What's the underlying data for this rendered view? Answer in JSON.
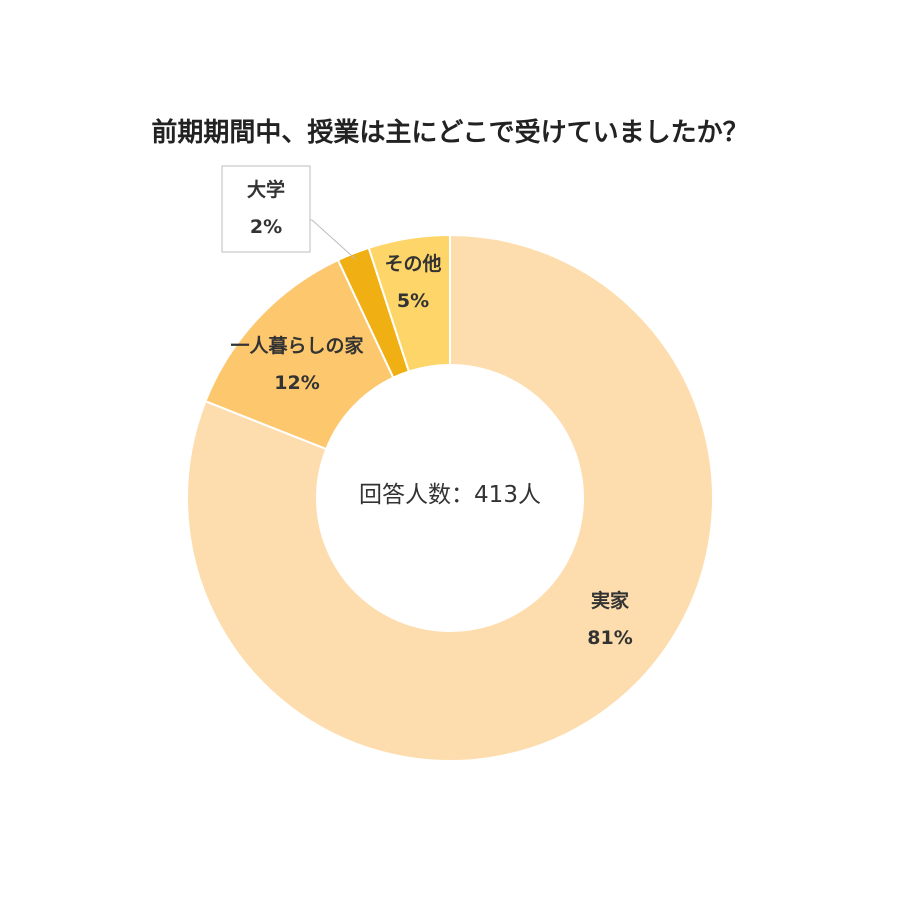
{
  "chart_data": {
    "type": "pie",
    "subtype": "donut",
    "title": "前期期間中、授業は主にどこで受けていましたか？",
    "center_label": "回答人数：413人",
    "start": "12 o'clock",
    "direction": "clockwise",
    "slices": [
      {
        "name": "実家",
        "value": 81,
        "value_label": "81%",
        "color": "#FDDDAE"
      },
      {
        "name": "一人暮らしの家",
        "value": 12,
        "value_label": "12%",
        "color": "#FDC76D"
      },
      {
        "name": "大学",
        "value": 2,
        "value_label": "2%",
        "color": "#F0B013"
      },
      {
        "name": "その他",
        "value": 5,
        "value_label": "5%",
        "color": "#FDD568"
      }
    ],
    "callout_slice": "大学",
    "slice_border_color": "#ffffff",
    "legend": "none"
  }
}
